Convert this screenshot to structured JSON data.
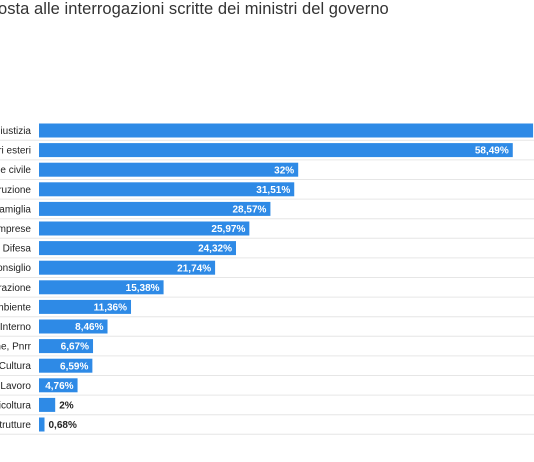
{
  "title": "osta alle interrogazioni scritte dei ministri del governo",
  "colors": {
    "bar": "#2e8ae6",
    "grid": "#e6e6e6"
  },
  "chart_data": {
    "type": "bar",
    "orientation": "horizontal",
    "categories": [
      "Giustizia",
      "ari esteri",
      "one civile",
      "struzione",
      "Famiglia",
      "Imprese",
      "Difesa",
      "consiglio",
      "strazione",
      "mbiente",
      "Interno",
      "one, Pnrr",
      "Cultura",
      "Lavoro",
      "ricoltura",
      "strutture"
    ],
    "values": [
      61,
      58.49,
      32,
      31.51,
      28.57,
      25.97,
      24.32,
      21.74,
      15.38,
      11.36,
      8.46,
      6.67,
      6.59,
      4.76,
      2,
      0.68
    ],
    "value_labels": [
      "",
      "58,49%",
      "32%",
      "31,51%",
      "28,57%",
      "25,97%",
      "24,32%",
      "21,74%",
      "15,38%",
      "11,36%",
      "8,46%",
      "6,67%",
      "6,59%",
      "4,76%",
      "2%",
      "0,68%"
    ],
    "xlim": [
      0,
      61
    ],
    "grid": true
  }
}
